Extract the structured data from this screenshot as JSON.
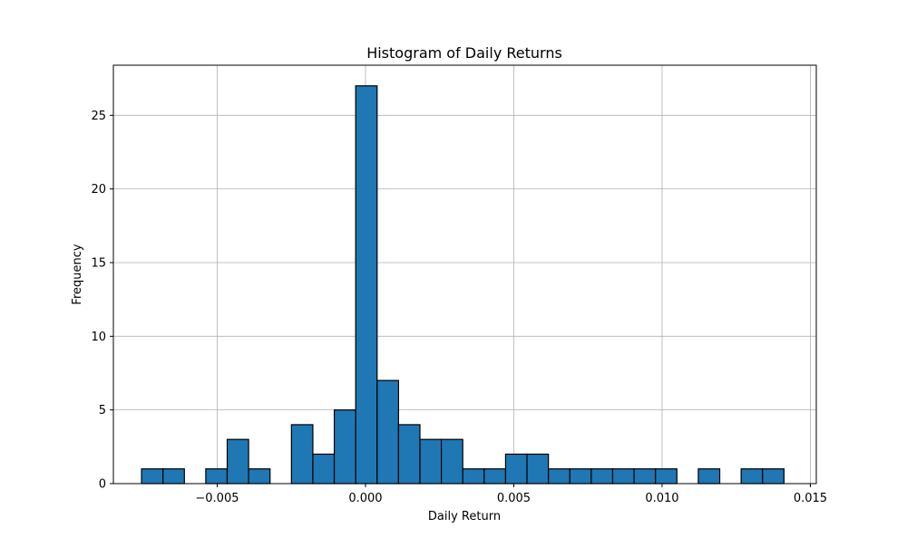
{
  "chart_data": {
    "type": "bar",
    "title": "Histogram of Daily Returns",
    "xlabel": "Daily Return",
    "ylabel": "Frequency",
    "xlim": [
      -0.0085,
      0.0152
    ],
    "ylim": [
      0,
      28.4
    ],
    "grid": true,
    "bar_color": "#1f77b4",
    "edge_color": "#000000",
    "grid_color": "#b0b0b0",
    "x_ticks": [
      -0.005,
      0.0,
      0.005,
      0.01,
      0.015
    ],
    "x_tick_labels": [
      "−0.005",
      "0.000",
      "0.005",
      "0.010",
      "0.015"
    ],
    "y_ticks": [
      0,
      5,
      10,
      15,
      20,
      25
    ],
    "y_tick_labels": [
      "0",
      "5",
      "10",
      "15",
      "20",
      "25"
    ],
    "bin_start": -0.00755,
    "bin_width": 0.000722,
    "counts": [
      1,
      1,
      0,
      1,
      3,
      1,
      0,
      4,
      2,
      5,
      27,
      7,
      4,
      3,
      3,
      1,
      1,
      2,
      2,
      1,
      1,
      1,
      1,
      1,
      1,
      0,
      1,
      0,
      1,
      1
    ]
  }
}
